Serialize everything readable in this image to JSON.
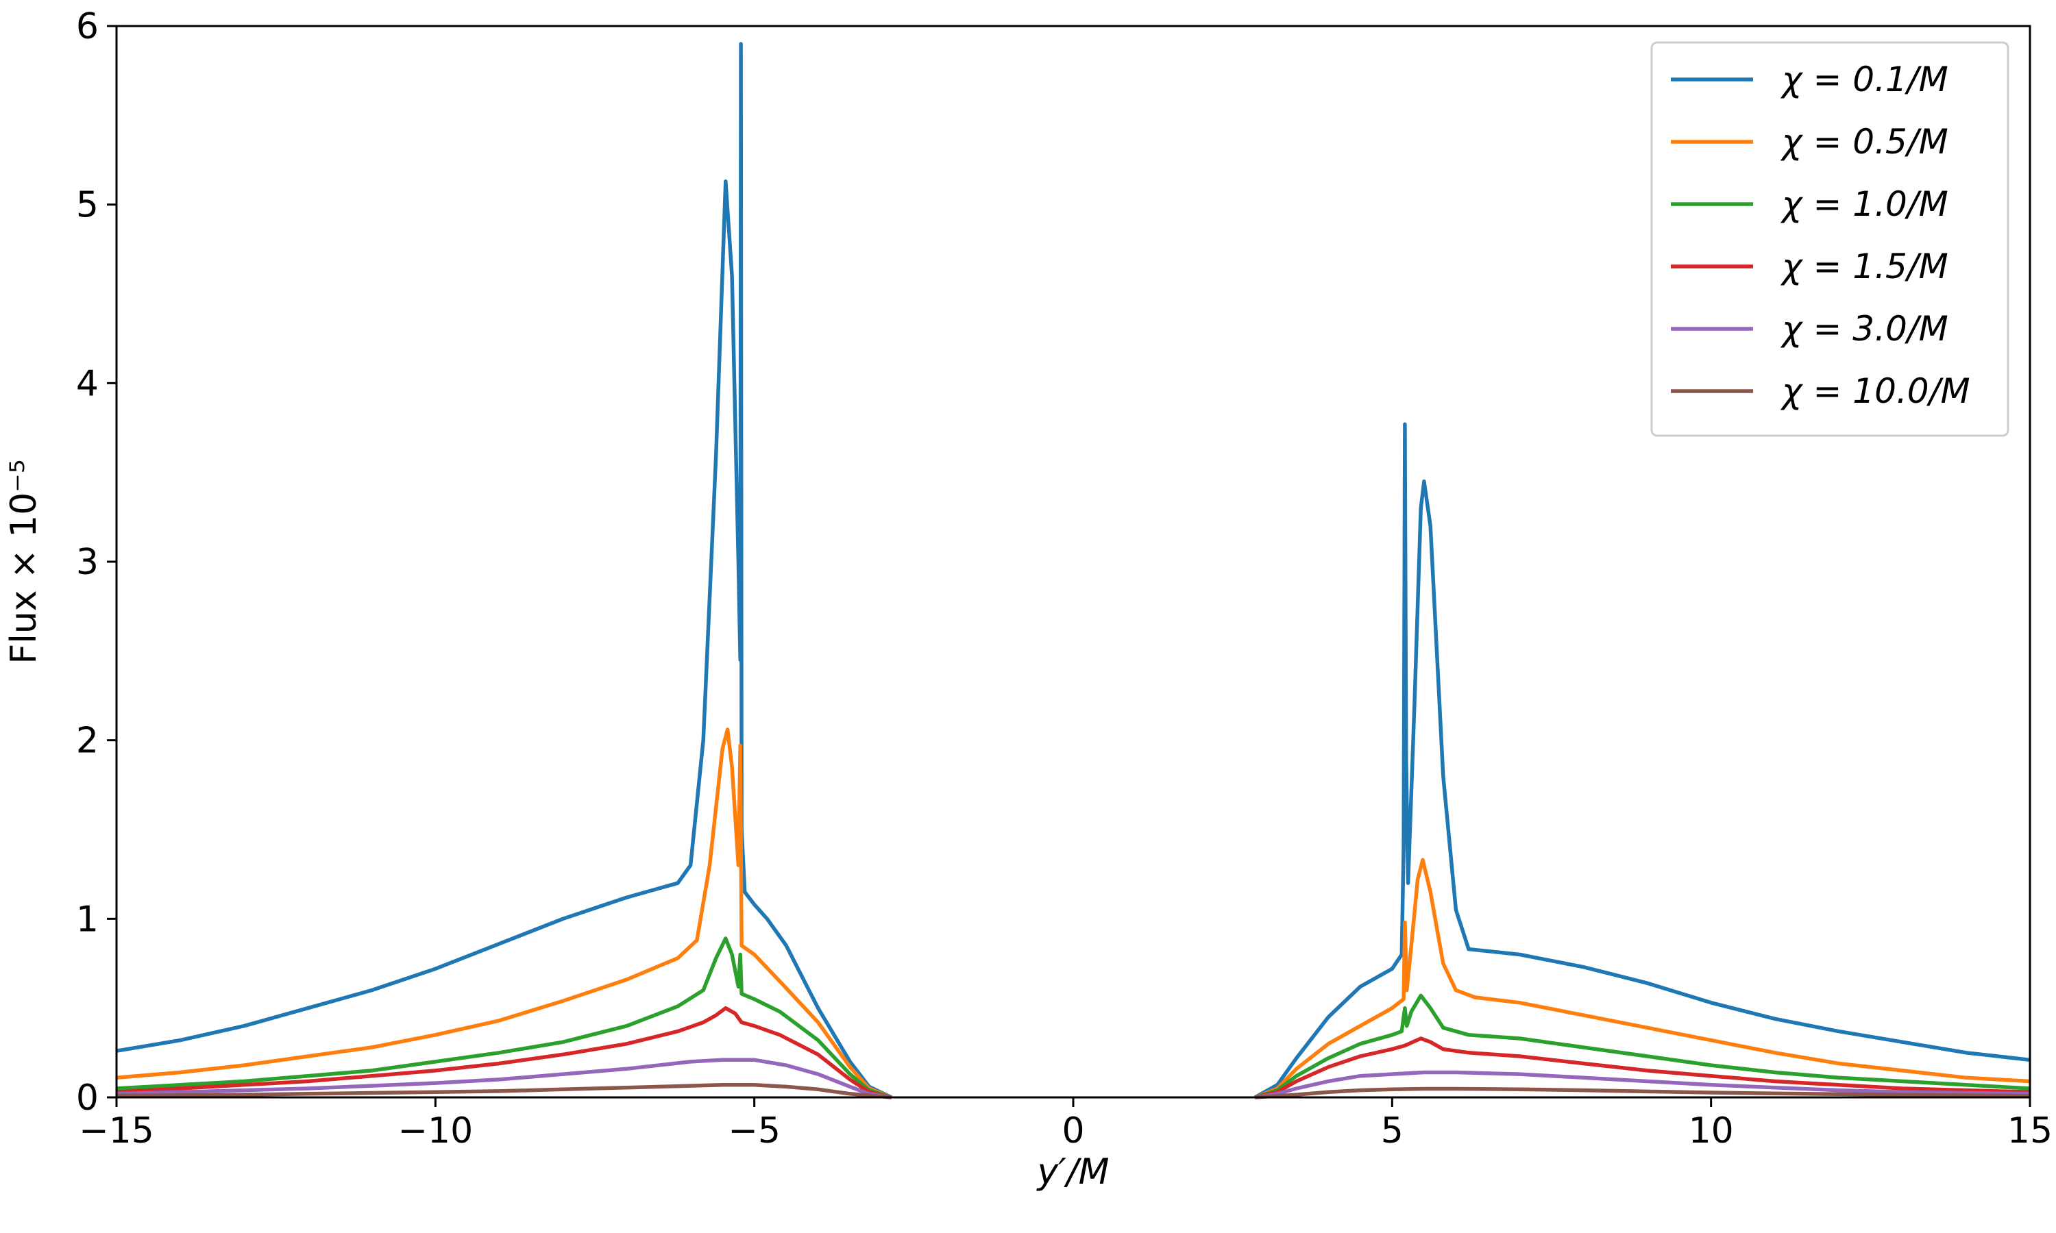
{
  "chart_data": {
    "type": "line",
    "xlabel": "y′/M",
    "ylabel": "Flux × 10⁻⁵",
    "xlim": [
      -15,
      15
    ],
    "ylim": [
      0,
      6
    ],
    "xticks": [
      -15,
      -10,
      -5,
      0,
      5,
      10,
      15
    ],
    "xtick_labels": [
      "−15",
      "−10",
      "−5",
      "0",
      "5",
      "10",
      "15"
    ],
    "yticks": [
      0,
      1,
      2,
      3,
      4,
      5,
      6
    ],
    "ytick_labels": [
      "0",
      "1",
      "2",
      "3",
      "4",
      "5",
      "6"
    ],
    "grid": false,
    "legend_position": "top-right",
    "series": [
      {
        "name": "χ = 0.1/M",
        "color": "#1f77b4",
        "points": [
          [
            -15,
            0.26
          ],
          [
            -14,
            0.32
          ],
          [
            -13,
            0.4
          ],
          [
            -12,
            0.5
          ],
          [
            -11,
            0.6
          ],
          [
            -10,
            0.72
          ],
          [
            -9,
            0.86
          ],
          [
            -8,
            1.0
          ],
          [
            -7,
            1.12
          ],
          [
            -6.5,
            1.17
          ],
          [
            -6.2,
            1.2
          ],
          [
            -6.0,
            1.3
          ],
          [
            -5.8,
            2.0
          ],
          [
            -5.6,
            3.6
          ],
          [
            -5.45,
            5.13
          ],
          [
            -5.35,
            4.6
          ],
          [
            -5.25,
            3.0
          ],
          [
            -5.22,
            2.45
          ],
          [
            -5.21,
            5.9
          ],
          [
            -5.2,
            1.5
          ],
          [
            -5.15,
            1.15
          ],
          [
            -5.0,
            1.08
          ],
          [
            -4.8,
            1.0
          ],
          [
            -4.5,
            0.85
          ],
          [
            -4.0,
            0.5
          ],
          [
            -3.5,
            0.2
          ],
          [
            -3.2,
            0.06
          ],
          [
            -2.85,
            0.0
          ],
          null,
          [
            2.85,
            0.0
          ],
          [
            3.2,
            0.07
          ],
          [
            3.5,
            0.22
          ],
          [
            4.0,
            0.45
          ],
          [
            4.5,
            0.62
          ],
          [
            5.0,
            0.72
          ],
          [
            5.15,
            0.8
          ],
          [
            5.18,
            1.4
          ],
          [
            5.2,
            3.77
          ],
          [
            5.22,
            1.9
          ],
          [
            5.25,
            1.2
          ],
          [
            5.35,
            2.2
          ],
          [
            5.45,
            3.3
          ],
          [
            5.5,
            3.45
          ],
          [
            5.6,
            3.2
          ],
          [
            5.8,
            1.8
          ],
          [
            6.0,
            1.05
          ],
          [
            6.2,
            0.83
          ],
          [
            7,
            0.8
          ],
          [
            8,
            0.73
          ],
          [
            9,
            0.64
          ],
          [
            10,
            0.53
          ],
          [
            11,
            0.44
          ],
          [
            12,
            0.37
          ],
          [
            13,
            0.31
          ],
          [
            14,
            0.25
          ],
          [
            15,
            0.21
          ]
        ]
      },
      {
        "name": "χ = 0.5/M",
        "color": "#ff7f0e",
        "points": [
          [
            -15,
            0.11
          ],
          [
            -14,
            0.14
          ],
          [
            -13,
            0.18
          ],
          [
            -12,
            0.23
          ],
          [
            -11,
            0.28
          ],
          [
            -10,
            0.35
          ],
          [
            -9,
            0.43
          ],
          [
            -8,
            0.54
          ],
          [
            -7,
            0.66
          ],
          [
            -6.2,
            0.78
          ],
          [
            -5.9,
            0.88
          ],
          [
            -5.7,
            1.3
          ],
          [
            -5.5,
            1.95
          ],
          [
            -5.42,
            2.06
          ],
          [
            -5.35,
            1.85
          ],
          [
            -5.25,
            1.3
          ],
          [
            -5.22,
            1.97
          ],
          [
            -5.2,
            0.85
          ],
          [
            -5.0,
            0.8
          ],
          [
            -4.6,
            0.65
          ],
          [
            -4.0,
            0.42
          ],
          [
            -3.5,
            0.17
          ],
          [
            -3.2,
            0.05
          ],
          [
            -2.85,
            0.0
          ],
          null,
          [
            2.85,
            0.0
          ],
          [
            3.2,
            0.05
          ],
          [
            3.5,
            0.16
          ],
          [
            4.0,
            0.3
          ],
          [
            4.5,
            0.4
          ],
          [
            5.0,
            0.5
          ],
          [
            5.18,
            0.55
          ],
          [
            5.2,
            0.98
          ],
          [
            5.23,
            0.6
          ],
          [
            5.3,
            0.85
          ],
          [
            5.4,
            1.22
          ],
          [
            5.48,
            1.33
          ],
          [
            5.6,
            1.15
          ],
          [
            5.8,
            0.75
          ],
          [
            6.0,
            0.6
          ],
          [
            6.3,
            0.56
          ],
          [
            7,
            0.53
          ],
          [
            8,
            0.46
          ],
          [
            9,
            0.39
          ],
          [
            10,
            0.32
          ],
          [
            11,
            0.25
          ],
          [
            12,
            0.19
          ],
          [
            13,
            0.15
          ],
          [
            14,
            0.11
          ],
          [
            15,
            0.09
          ]
        ]
      },
      {
        "name": "χ = 1.0/M",
        "color": "#2ca02c",
        "points": [
          [
            -15,
            0.05
          ],
          [
            -14,
            0.07
          ],
          [
            -13,
            0.09
          ],
          [
            -12,
            0.12
          ],
          [
            -11,
            0.15
          ],
          [
            -10,
            0.2
          ],
          [
            -9,
            0.25
          ],
          [
            -8,
            0.31
          ],
          [
            -7,
            0.4
          ],
          [
            -6.2,
            0.51
          ],
          [
            -5.8,
            0.6
          ],
          [
            -5.6,
            0.78
          ],
          [
            -5.45,
            0.89
          ],
          [
            -5.35,
            0.8
          ],
          [
            -5.25,
            0.62
          ],
          [
            -5.22,
            0.8
          ],
          [
            -5.2,
            0.58
          ],
          [
            -5.0,
            0.55
          ],
          [
            -4.6,
            0.48
          ],
          [
            -4.0,
            0.32
          ],
          [
            -3.5,
            0.13
          ],
          [
            -3.2,
            0.04
          ],
          [
            -2.85,
            0.0
          ],
          null,
          [
            2.85,
            0.0
          ],
          [
            3.2,
            0.04
          ],
          [
            3.5,
            0.12
          ],
          [
            4.0,
            0.22
          ],
          [
            4.5,
            0.3
          ],
          [
            5.0,
            0.35
          ],
          [
            5.15,
            0.37
          ],
          [
            5.2,
            0.5
          ],
          [
            5.23,
            0.4
          ],
          [
            5.3,
            0.48
          ],
          [
            5.45,
            0.57
          ],
          [
            5.6,
            0.5
          ],
          [
            5.8,
            0.39
          ],
          [
            6.2,
            0.35
          ],
          [
            7,
            0.33
          ],
          [
            8,
            0.28
          ],
          [
            9,
            0.23
          ],
          [
            10,
            0.18
          ],
          [
            11,
            0.14
          ],
          [
            12,
            0.11
          ],
          [
            13,
            0.09
          ],
          [
            14,
            0.07
          ],
          [
            15,
            0.05
          ]
        ]
      },
      {
        "name": "χ = 1.5/M",
        "color": "#d62728",
        "points": [
          [
            -15,
            0.03
          ],
          [
            -14,
            0.05
          ],
          [
            -13,
            0.07
          ],
          [
            -12,
            0.09
          ],
          [
            -11,
            0.12
          ],
          [
            -10,
            0.15
          ],
          [
            -9,
            0.19
          ],
          [
            -8,
            0.24
          ],
          [
            -7,
            0.3
          ],
          [
            -6.2,
            0.37
          ],
          [
            -5.8,
            0.42
          ],
          [
            -5.6,
            0.46
          ],
          [
            -5.45,
            0.5
          ],
          [
            -5.3,
            0.47
          ],
          [
            -5.2,
            0.42
          ],
          [
            -5.0,
            0.4
          ],
          [
            -4.6,
            0.35
          ],
          [
            -4.0,
            0.24
          ],
          [
            -3.5,
            0.1
          ],
          [
            -3.2,
            0.03
          ],
          [
            -2.85,
            0.0
          ],
          null,
          [
            2.85,
            0.0
          ],
          [
            3.2,
            0.03
          ],
          [
            3.5,
            0.09
          ],
          [
            4.0,
            0.17
          ],
          [
            4.5,
            0.23
          ],
          [
            5.0,
            0.27
          ],
          [
            5.2,
            0.29
          ],
          [
            5.45,
            0.33
          ],
          [
            5.6,
            0.31
          ],
          [
            5.8,
            0.27
          ],
          [
            6.2,
            0.25
          ],
          [
            7,
            0.23
          ],
          [
            8,
            0.19
          ],
          [
            9,
            0.15
          ],
          [
            10,
            0.12
          ],
          [
            11,
            0.09
          ],
          [
            12,
            0.07
          ],
          [
            13,
            0.05
          ],
          [
            14,
            0.04
          ],
          [
            15,
            0.03
          ]
        ]
      },
      {
        "name": "χ = 3.0/M",
        "color": "#9467bd",
        "points": [
          [
            -15,
            0.02
          ],
          [
            -14,
            0.03
          ],
          [
            -13,
            0.04
          ],
          [
            -12,
            0.05
          ],
          [
            -11,
            0.065
          ],
          [
            -10,
            0.08
          ],
          [
            -9,
            0.1
          ],
          [
            -8,
            0.13
          ],
          [
            -7,
            0.16
          ],
          [
            -6,
            0.2
          ],
          [
            -5.5,
            0.21
          ],
          [
            -5.0,
            0.21
          ],
          [
            -4.5,
            0.18
          ],
          [
            -4.0,
            0.13
          ],
          [
            -3.5,
            0.06
          ],
          [
            -3.2,
            0.02
          ],
          [
            -2.85,
            0.0
          ],
          null,
          [
            2.85,
            0.0
          ],
          [
            3.2,
            0.02
          ],
          [
            3.5,
            0.05
          ],
          [
            4.0,
            0.09
          ],
          [
            4.5,
            0.12
          ],
          [
            5.0,
            0.13
          ],
          [
            5.5,
            0.14
          ],
          [
            6.0,
            0.14
          ],
          [
            7,
            0.13
          ],
          [
            8,
            0.11
          ],
          [
            9,
            0.09
          ],
          [
            10,
            0.07
          ],
          [
            11,
            0.055
          ],
          [
            12,
            0.04
          ],
          [
            13,
            0.03
          ],
          [
            14,
            0.025
          ],
          [
            15,
            0.02
          ]
        ]
      },
      {
        "name": "χ = 10.0/M",
        "color": "#8c564b",
        "points": [
          [
            -15,
            0.01
          ],
          [
            -14,
            0.012
          ],
          [
            -13,
            0.015
          ],
          [
            -12,
            0.02
          ],
          [
            -11,
            0.025
          ],
          [
            -10,
            0.03
          ],
          [
            -9,
            0.035
          ],
          [
            -8,
            0.045
          ],
          [
            -7,
            0.055
          ],
          [
            -6,
            0.065
          ],
          [
            -5.5,
            0.07
          ],
          [
            -5.0,
            0.07
          ],
          [
            -4.5,
            0.06
          ],
          [
            -4.0,
            0.045
          ],
          [
            -3.5,
            0.02
          ],
          [
            -2.85,
            0.0
          ],
          null,
          [
            2.85,
            0.0
          ],
          [
            3.5,
            0.015
          ],
          [
            4.0,
            0.03
          ],
          [
            4.5,
            0.04
          ],
          [
            5.0,
            0.045
          ],
          [
            5.5,
            0.048
          ],
          [
            6.0,
            0.048
          ],
          [
            7,
            0.045
          ],
          [
            8,
            0.04
          ],
          [
            9,
            0.033
          ],
          [
            10,
            0.027
          ],
          [
            11,
            0.022
          ],
          [
            12,
            0.018
          ],
          [
            13,
            0.014
          ],
          [
            14,
            0.011
          ],
          [
            15,
            0.009
          ]
        ]
      }
    ]
  }
}
